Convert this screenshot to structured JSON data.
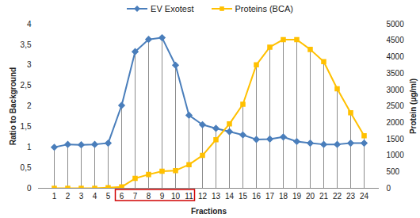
{
  "chart_data": {
    "type": "line",
    "categories": [
      "1",
      "2",
      "3",
      "4",
      "5",
      "6",
      "7",
      "8",
      "9",
      "10",
      "11",
      "12",
      "13",
      "14",
      "15",
      "16",
      "17",
      "18",
      "19",
      "20",
      "21",
      "22",
      "23",
      "24"
    ],
    "x_label": "Fractions",
    "y_label": "Ratio to Background",
    "y2_label": "Protein (µg/ml)",
    "ylim": [
      0,
      4
    ],
    "yticks": [
      0,
      {
        "value": 0.5,
        "label": "0,5"
      },
      1,
      {
        "value": 1.5,
        "label": "1,5"
      },
      2,
      {
        "value": 2.5,
        "label": "2,5"
      },
      3,
      {
        "value": 3.5,
        "label": "3,5"
      },
      4
    ],
    "y2lim": [
      0,
      5000
    ],
    "y2ticks": [
      0,
      500,
      1000,
      1500,
      2000,
      2500,
      3000,
      3500,
      4000,
      4500,
      5000
    ],
    "grid": false,
    "legend": "top",
    "highlight_categories": [
      "6",
      "11"
    ],
    "series": [
      {
        "name": "EV Exotest",
        "color": "#4A7EBB",
        "marker": "diamond",
        "values": [
          1.0,
          1.07,
          1.06,
          1.07,
          1.1,
          2.02,
          3.33,
          3.63,
          3.67,
          3.0,
          1.78,
          1.55,
          1.46,
          1.38,
          1.3,
          1.19,
          1.2,
          1.25,
          1.14,
          1.1,
          1.07,
          1.07,
          1.1,
          1.1
        ]
      },
      {
        "name": "Proteins (BCA)",
        "color": "#FFC000",
        "marker": "square",
        "axis": "y2",
        "values": [
          0,
          0,
          0,
          0,
          20,
          40,
          300,
          420,
          520,
          540,
          720,
          1000,
          1480,
          1960,
          2560,
          3760,
          4300,
          4530,
          4530,
          4230,
          3860,
          3030,
          2300,
          1600
        ]
      }
    ]
  }
}
